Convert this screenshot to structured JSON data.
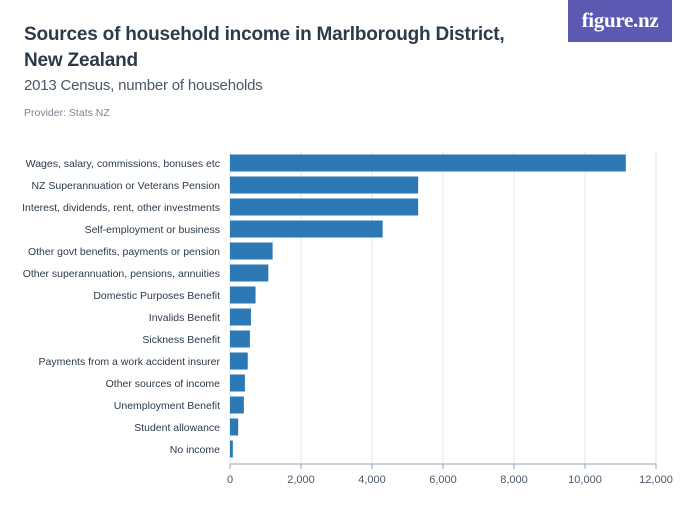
{
  "header": {
    "title": "Sources of household income in Marlborough District, New Zealand",
    "subtitle": "2013 Census, number of households",
    "provider": "Provider: Stats NZ",
    "logo": "figure.nz"
  },
  "colors": {
    "bar": "#2b78b5",
    "logo_bg": "#5c59b3",
    "grid": "#e2e4e8"
  },
  "chart_data": {
    "type": "bar",
    "orientation": "horizontal",
    "title": "Sources of household income in Marlborough District, New Zealand",
    "subtitle": "2013 Census, number of households",
    "categories": [
      "Wages, salary, commissions, bonuses etc",
      "NZ Superannuation or Veterans Pension",
      "Interest, dividends, rent, other investments",
      "Self-employment or business",
      "Other govt benefits, payments or pension",
      "Other superannuation, pensions, annuities",
      "Domestic Purposes Benefit",
      "Invalids Benefit",
      "Sickness Benefit",
      "Payments from a work accident insurer",
      "Other sources of income",
      "Unemployment Benefit",
      "Student allowance",
      "No income"
    ],
    "values": [
      11150,
      5300,
      5300,
      4300,
      1200,
      1080,
      720,
      590,
      560,
      500,
      420,
      390,
      230,
      80
    ],
    "xlim": [
      0,
      12000
    ],
    "xticks": [
      0,
      2000,
      4000,
      6000,
      8000,
      10000,
      12000
    ],
    "xtick_labels": [
      "0",
      "2,000",
      "4,000",
      "6,000",
      "8,000",
      "10,000",
      "12,000"
    ],
    "grid": true,
    "legend": "none"
  }
}
